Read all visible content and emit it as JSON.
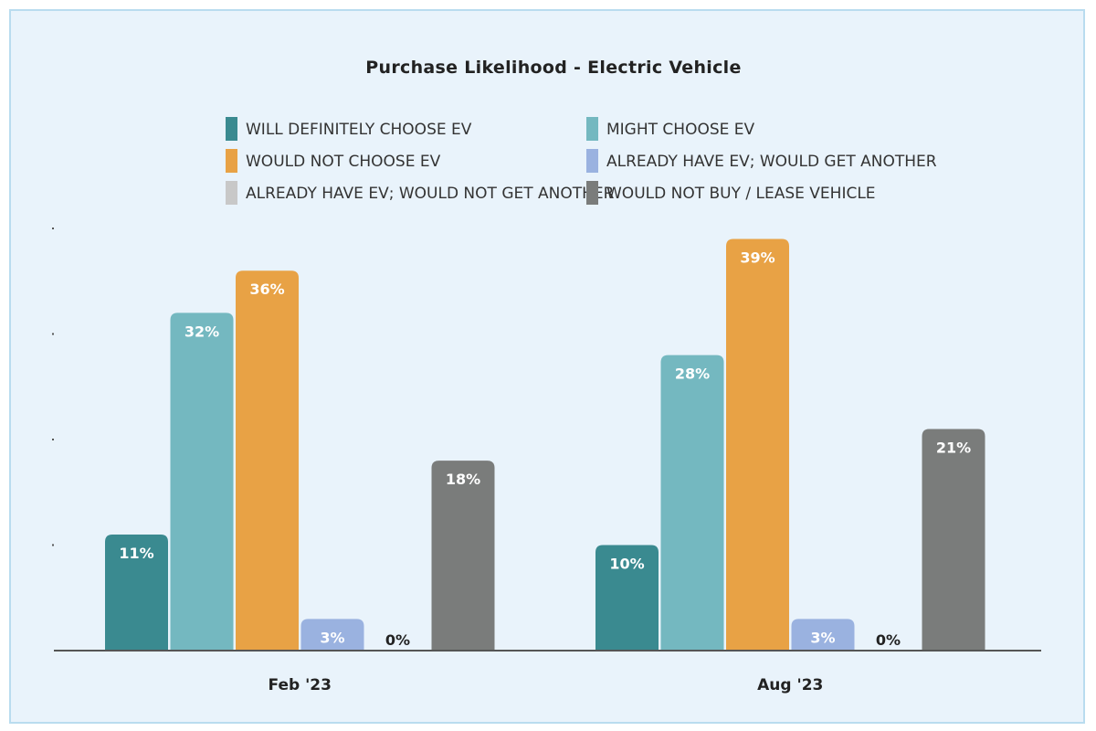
{
  "chart_data": {
    "type": "bar",
    "title": "Purchase Likelihood - Electric Vehicle",
    "categories": [
      "Feb '23",
      "Aug '23"
    ],
    "series": [
      {
        "name": "WILL DEFINITELY CHOOSE EV",
        "color": "#3a8a90",
        "values": [
          11,
          10
        ],
        "labels": [
          "11%",
          "10%"
        ]
      },
      {
        "name": "MIGHT CHOOSE EV",
        "color": "#74b8c0",
        "values": [
          32,
          28
        ],
        "labels": [
          "32%",
          "28%"
        ]
      },
      {
        "name": "WOULD NOT CHOOSE EV",
        "color": "#e8a245",
        "values": [
          36,
          39
        ],
        "labels": [
          "36%",
          "39%"
        ]
      },
      {
        "name": "ALREADY HAVE EV; WOULD GET ANOTHER",
        "color": "#9ab2e0",
        "values": [
          3,
          3
        ],
        "labels": [
          "3%",
          "3%"
        ]
      },
      {
        "name": "ALREADY HAVE EV; WOULD NOT GET ANOTHER",
        "color": "#c8c8c8",
        "values": [
          0,
          0
        ],
        "labels": [
          "0%",
          "0%"
        ]
      },
      {
        "name": "WOULD NOT BUY / LEASE VEHICLE",
        "color": "#7a7c7b",
        "values": [
          18,
          21
        ],
        "labels": [
          "18%",
          "21%"
        ]
      }
    ],
    "xlabel": "",
    "ylabel": "",
    "ylim": [
      0,
      40
    ],
    "legend_position": "top",
    "grid": false
  }
}
